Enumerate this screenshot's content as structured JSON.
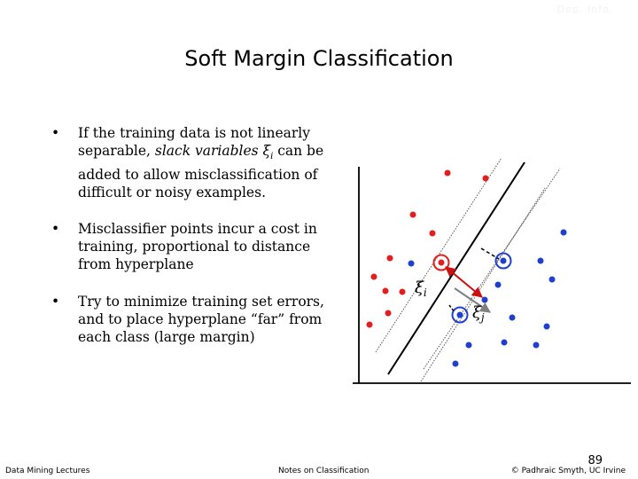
{
  "header": {
    "corner_mark": "Dep. Info."
  },
  "title": "Soft Margin Classification",
  "bullets": [
    {
      "marker": "•",
      "text_before": "If the training data is not linearly separable, ",
      "slack_term": "slack variables ξ",
      "slack_sub": "i",
      "text_after": " can be added to allow misclassification of difficult or noisy examples."
    },
    {
      "marker": "•",
      "text": "Misclassifier points incur a cost in training, proportional to distance from hyperplane"
    },
    {
      "marker": "•",
      "text": "Try to minimize training set errors, and to place hyperplane “far” from each class (large margin)"
    }
  ],
  "diagram": {
    "xi_label_left": "ξ",
    "xi_sub_left": "i",
    "xi_label_right": "ξ",
    "xi_sub_right": "j",
    "colors": {
      "red_class": "#e41e1e",
      "blue_class": "#1f3fcf",
      "hyperplane": "#000000",
      "margin": "#555555",
      "red_arrow": "#cc1111",
      "gray_arrow": "#808080"
    }
  },
  "footer": {
    "left": "Data Mining Lectures",
    "middle": "Notes on Classification",
    "right": "© Padhraic Smyth, UC Irvine",
    "page_number": "89"
  }
}
